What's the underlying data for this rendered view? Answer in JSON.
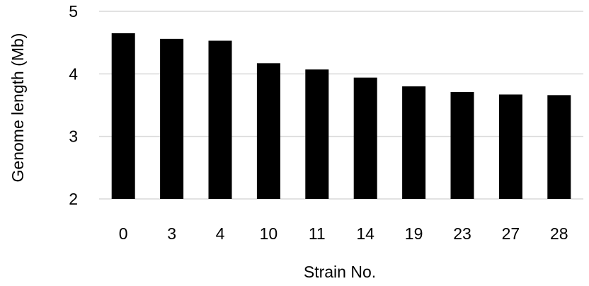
{
  "chart_data": {
    "type": "bar",
    "title": "",
    "xlabel": "Strain No.",
    "ylabel": "Genome length (Mb)",
    "categories": [
      "0",
      "3",
      "4",
      "10",
      "11",
      "14",
      "19",
      "23",
      "27",
      "28"
    ],
    "values": [
      4.65,
      4.56,
      4.53,
      4.17,
      4.07,
      3.94,
      3.8,
      3.71,
      3.67,
      3.66
    ],
    "ylim": [
      2,
      5
    ],
    "yticks": [
      "2",
      "3",
      "4",
      "5"
    ],
    "grid": true,
    "legend": "none",
    "colors": {
      "bar": "#000000",
      "grid": "#d9d9d9"
    }
  }
}
